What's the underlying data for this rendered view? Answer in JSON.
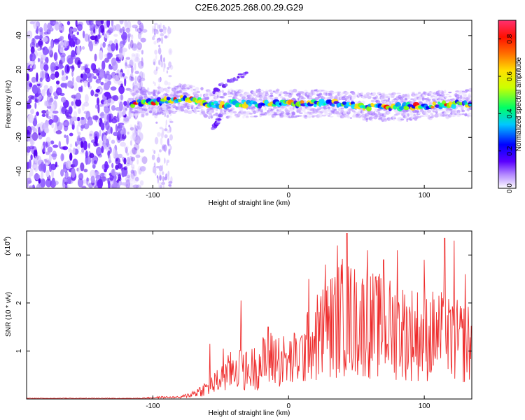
{
  "title": "C2E6.2025.268.00.29.G29",
  "chart_data": [
    {
      "type": "heatmap",
      "name": "spectrogram",
      "xlabel": "Height of straight line (km)",
      "ylabel": "Frequency (Hz)",
      "xlim": [
        -193,
        135
      ],
      "ylim": [
        -50,
        49
      ],
      "xticks": [
        -100,
        0,
        100
      ],
      "xtick_labels": [
        "-100",
        "0",
        "100"
      ],
      "yticks": [
        -40,
        -20,
        0,
        20,
        40
      ],
      "ytick_labels": [
        "-40",
        "-20",
        "0",
        "20",
        "40"
      ],
      "noise_region_x": [
        -193,
        -112
      ],
      "noise_stripe_x": [
        -100,
        -86
      ],
      "signal_x_start": -116,
      "ridge_center": [
        [
          -116,
          0
        ],
        [
          -100,
          1
        ],
        [
          -90,
          2
        ],
        [
          -80,
          3
        ],
        [
          -70,
          2
        ],
        [
          -60,
          0
        ],
        [
          -50,
          -1
        ],
        [
          -40,
          0
        ],
        [
          -20,
          0
        ],
        [
          0,
          0
        ],
        [
          20,
          0
        ],
        [
          40,
          0
        ],
        [
          55,
          -2
        ],
        [
          70,
          -2
        ],
        [
          90,
          -2
        ],
        [
          110,
          -1
        ],
        [
          135,
          0
        ]
      ],
      "branches": [
        {
          "x": [
            -55,
            -30
          ],
          "y": [
            8,
            18
          ],
          "label": "upper branch"
        },
        {
          "x": [
            -56,
            -50
          ],
          "y": [
            -15,
            -8
          ],
          "label": "lower branch"
        }
      ],
      "colorbar": {
        "label": "Normalized spectral amplitude",
        "range": [
          0.0,
          0.9
        ],
        "ticks": [
          0.0,
          0.2,
          0.4,
          0.6,
          0.8
        ],
        "tick_labels": [
          "0.0",
          "0.2",
          "0.4",
          "0.6",
          "0.8"
        ]
      }
    },
    {
      "type": "line",
      "name": "snr",
      "xlabel": "Height of straight line (km)",
      "ylabel": "SNR (10 * v/v)",
      "y_multiplier": "(x10",
      "y_multiplier_exp": "4",
      "y_multiplier_close": ")",
      "xlim": [
        -193,
        135
      ],
      "ylim": [
        0,
        3.5
      ],
      "xticks": [
        -100,
        0,
        100
      ],
      "xtick_labels": [
        "-100",
        "0",
        "100"
      ],
      "yticks": [
        1,
        2,
        3
      ],
      "ytick_labels": [
        "1",
        "2",
        "3"
      ],
      "line_color": "#ee2b2b",
      "envelope": [
        [
          -193,
          0.02
        ],
        [
          -110,
          0.02
        ],
        [
          -95,
          0.05
        ],
        [
          -80,
          0.05
        ],
        [
          -70,
          0.2
        ],
        [
          -60,
          0.4
        ],
        [
          -50,
          0.7
        ],
        [
          -38,
          1.2
        ],
        [
          -30,
          1.0
        ],
        [
          -20,
          1.3
        ],
        [
          -10,
          1.5
        ],
        [
          0,
          1.3
        ],
        [
          10,
          1.6
        ],
        [
          20,
          2.2
        ],
        [
          30,
          2.6
        ],
        [
          40,
          3.0
        ],
        [
          50,
          2.8
        ],
        [
          60,
          2.7
        ],
        [
          70,
          2.6
        ],
        [
          80,
          2.5
        ],
        [
          90,
          2.4
        ],
        [
          100,
          2.3
        ],
        [
          110,
          2.3
        ],
        [
          120,
          2.1
        ],
        [
          135,
          2.0
        ]
      ],
      "peaks": [
        [
          -58,
          1.15
        ],
        [
          -48,
          1.05
        ],
        [
          -35,
          2.05
        ],
        [
          -15,
          1.5
        ],
        [
          15,
          2.5
        ],
        [
          27,
          2.8
        ],
        [
          36,
          3.2
        ],
        [
          43,
          3.45
        ],
        [
          58,
          3.1
        ],
        [
          70,
          2.9
        ],
        [
          80,
          3.1
        ],
        [
          100,
          2.9
        ],
        [
          115,
          3.35
        ],
        [
          122,
          3.3
        ],
        [
          130,
          2.6
        ]
      ]
    }
  ]
}
